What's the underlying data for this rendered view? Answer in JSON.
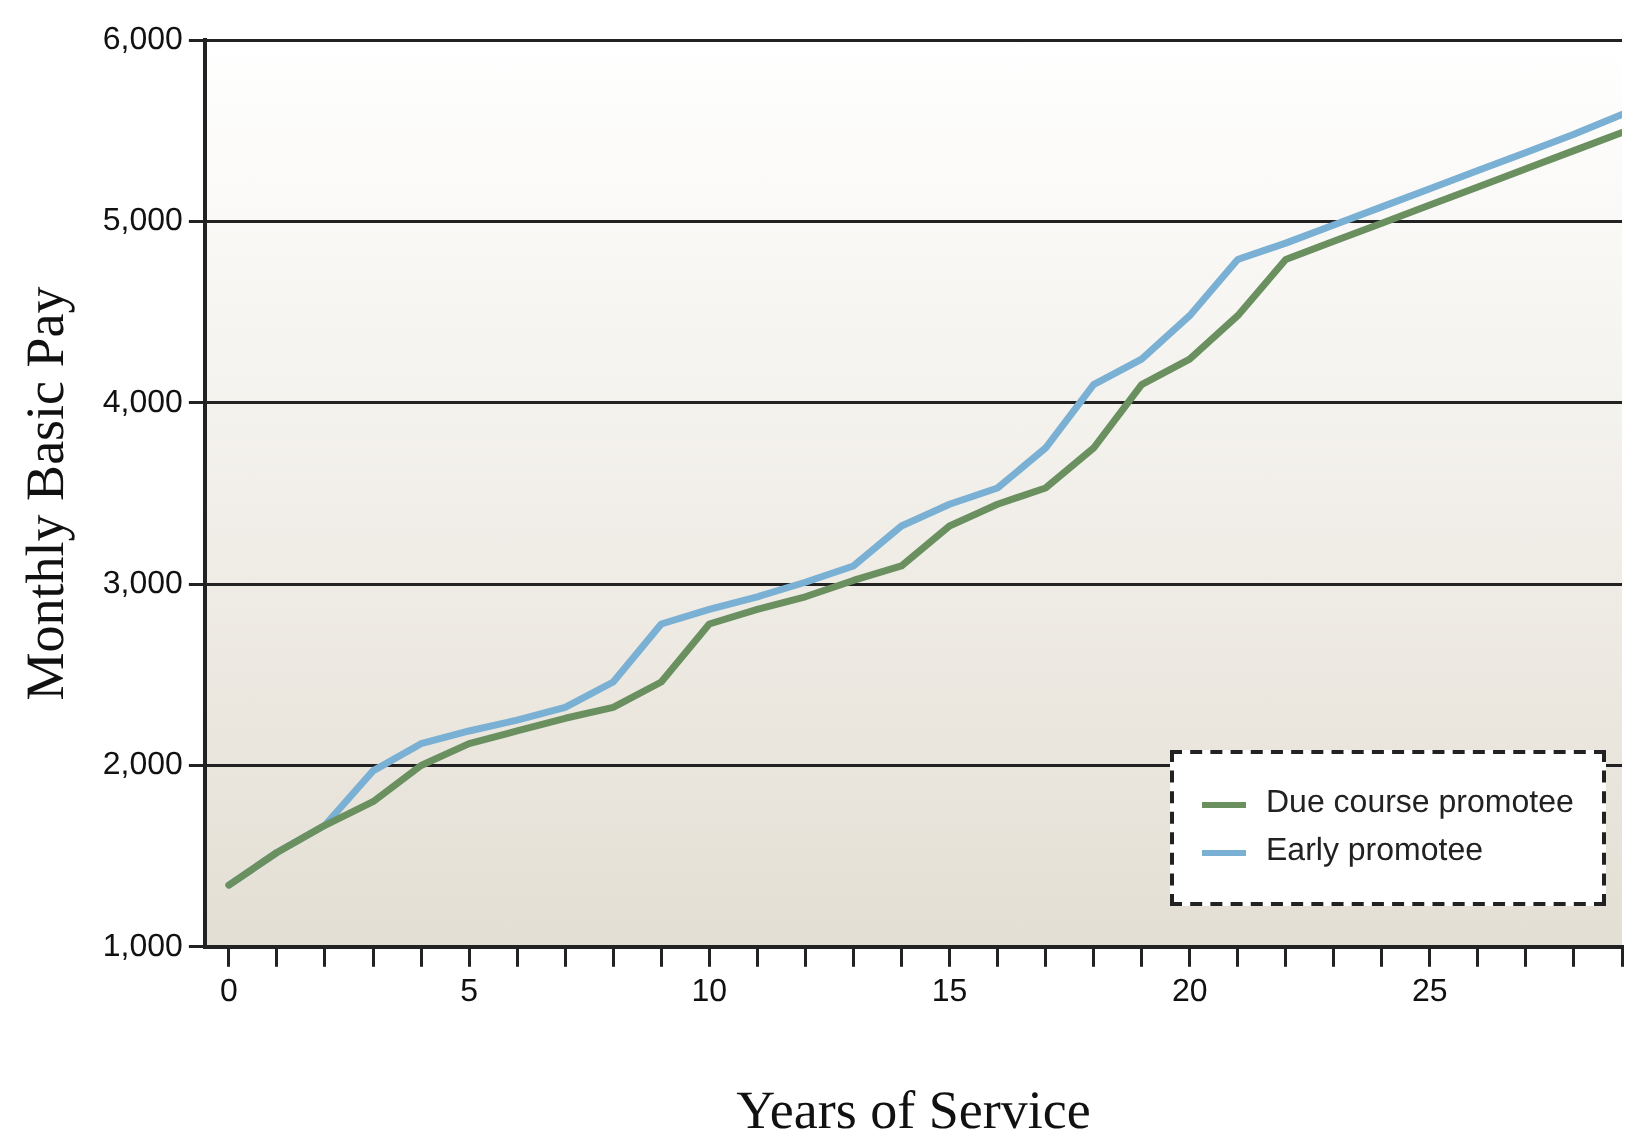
{
  "chart_data": {
    "type": "line",
    "xlabel": "Years of Service",
    "ylabel": "Monthly Basic Pay",
    "x": [
      0,
      1,
      2,
      3,
      4,
      5,
      6,
      7,
      8,
      9,
      10,
      11,
      12,
      13,
      14,
      15,
      16,
      17,
      18,
      19,
      20,
      21,
      22,
      23,
      24,
      25,
      26,
      27,
      28,
      29
    ],
    "series": [
      {
        "name": "Due course promotee",
        "color": "#6a9060",
        "values": [
          1340,
          1520,
          1670,
          1800,
          2000,
          2120,
          2190,
          2260,
          2320,
          2460,
          2780,
          2860,
          2930,
          3020,
          3100,
          3320,
          3440,
          3530,
          3750,
          4100,
          4240,
          4480,
          4790,
          4890,
          4990,
          5090,
          5190,
          5290,
          5390,
          5490
        ]
      },
      {
        "name": "Early promotee",
        "color": "#7ab0d4",
        "values": [
          1340,
          1520,
          1670,
          1970,
          2120,
          2190,
          2250,
          2320,
          2460,
          2780,
          2860,
          2930,
          3010,
          3100,
          3320,
          3440,
          3530,
          3750,
          4100,
          4240,
          4480,
          4790,
          4880,
          4980,
          5080,
          5180,
          5280,
          5380,
          5480,
          5590
        ]
      }
    ],
    "xlim": [
      -0.5,
      29
    ],
    "xticks": [
      0,
      {
        "value": 1,
        "label": null
      },
      {
        "value": 2,
        "label": null
      },
      {
        "value": 3,
        "label": null
      },
      {
        "value": 4,
        "label": null
      },
      5,
      {
        "value": 6,
        "label": null
      },
      {
        "value": 7,
        "label": null
      },
      {
        "value": 8,
        "label": null
      },
      {
        "value": 9,
        "label": null
      },
      10,
      {
        "value": 11,
        "label": null
      },
      {
        "value": 12,
        "label": null
      },
      {
        "value": 13,
        "label": null
      },
      {
        "value": 14,
        "label": null
      },
      15,
      {
        "value": 16,
        "label": null
      },
      {
        "value": 17,
        "label": null
      },
      {
        "value": 18,
        "label": null
      },
      {
        "value": 19,
        "label": null
      },
      20,
      {
        "value": 21,
        "label": null
      },
      {
        "value": 22,
        "label": null
      },
      {
        "value": 23,
        "label": null
      },
      {
        "value": 24,
        "label": null
      },
      25,
      {
        "value": 26,
        "label": null
      },
      {
        "value": 27,
        "label": null
      },
      {
        "value": 28,
        "label": null
      },
      {
        "value": 29,
        "label": null
      }
    ],
    "ylim": [
      1000,
      6000
    ],
    "yticks": [
      {
        "value": 1000,
        "label": "1,000"
      },
      {
        "value": 2000,
        "label": "2,000"
      },
      {
        "value": 3000,
        "label": "3,000"
      },
      {
        "value": 4000,
        "label": "4,000"
      },
      {
        "value": 5000,
        "label": "5,000"
      },
      {
        "value": 6000,
        "label": "6,000"
      }
    ],
    "grid": "y",
    "legend": "bottom right",
    "marker": "none",
    "line_style": "solid"
  }
}
